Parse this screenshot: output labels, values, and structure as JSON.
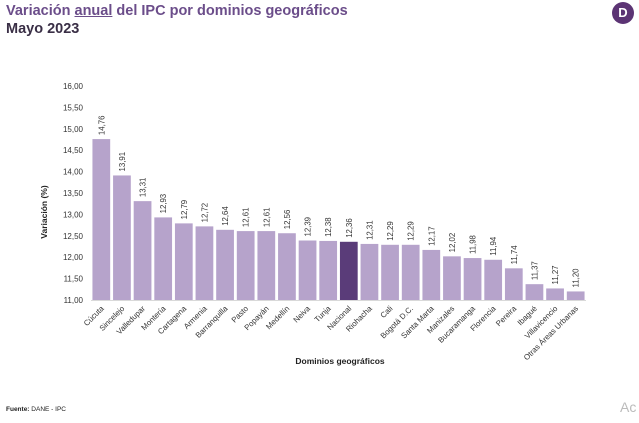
{
  "header": {
    "title_pre": "Variación ",
    "title_underlined": "anual",
    "title_post": " del IPC por dominios geográficos",
    "subtitle": "Mayo 2023"
  },
  "logo": {
    "letter": "D"
  },
  "footer": {
    "source_label": "Fuente:",
    "source_text": "DANE - IPC"
  },
  "corner_text": "Ac",
  "colors": {
    "bar": "#b6a3cb",
    "highlight": "#5a3c79",
    "title": "#6b4d8a"
  },
  "chart_data": {
    "type": "bar",
    "title": "Variación anual del IPC por dominios geográficos",
    "xlabel": "Dominios geográficos",
    "ylabel": "Variación (%)",
    "ylim": [
      11.0,
      16.0
    ],
    "yticks": [
      "16,00",
      "15,50",
      "15,00",
      "14,50",
      "14,00",
      "13,50",
      "13,00",
      "12,50",
      "12,00",
      "11,50",
      "11,00"
    ],
    "ytick_values": [
      16.0,
      15.5,
      15.0,
      14.5,
      14.0,
      13.5,
      13.0,
      12.5,
      12.0,
      11.5,
      11.0
    ],
    "highlight_category": "Nacional",
    "categories": [
      "Cúcuta",
      "Sincelejo",
      "Valledupar",
      "Montería",
      "Cartagena",
      "Armenia",
      "Barranquilla",
      "Pasto",
      "Popayán",
      "Medellín",
      "Neiva",
      "Tunja",
      "Nacional",
      "Riohacha",
      "Cali",
      "Bogotá D.C.",
      "Santa Marta",
      "Manizales",
      "Bucaramanga",
      "Florencia",
      "Pereira",
      "Ibagué",
      "Villavicencio",
      "Otras Áreas Urbanas"
    ],
    "values": [
      14.76,
      13.91,
      13.31,
      12.93,
      12.79,
      12.72,
      12.64,
      12.61,
      12.61,
      12.56,
      12.39,
      12.38,
      12.36,
      12.31,
      12.29,
      12.29,
      12.17,
      12.02,
      11.98,
      11.94,
      11.74,
      11.37,
      11.27,
      11.2
    ],
    "value_labels": [
      "14,76",
      "13,91",
      "13,31",
      "12,93",
      "12,79",
      "12,72",
      "12,64",
      "12,61",
      "12,61",
      "12,56",
      "12,39",
      "12,38",
      "12,36",
      "12,31",
      "12,29",
      "12,29",
      "12,17",
      "12,02",
      "11,98",
      "11,94",
      "11,74",
      "11,37",
      "11,27",
      "11,20"
    ]
  }
}
